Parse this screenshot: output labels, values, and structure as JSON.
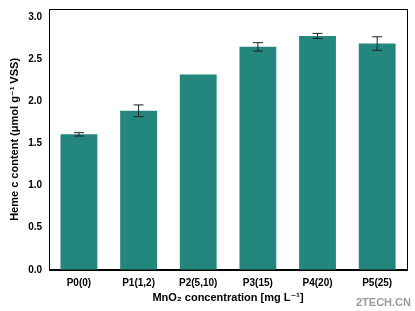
{
  "chart_data": {
    "type": "bar",
    "x_label": "MnO₂ concentration [mg L⁻¹]",
    "y_label": "Heme c content (μmol g⁻¹ VSS)",
    "categories": [
      "P0(0)",
      "P1(1,2)",
      "P2(5,10)",
      "P3(15)",
      "P4(20)",
      "P5(25)"
    ],
    "values": [
      1.61,
      1.89,
      2.32,
      2.65,
      2.78,
      2.69
    ],
    "errors": [
      0.02,
      0.07,
      0,
      0.05,
      0.03,
      0.08
    ],
    "color": "#24877e",
    "ylim": [
      0,
      3.1
    ],
    "yticks": [
      {
        "value": 0,
        "label": "0.0"
      },
      0.5,
      {
        "value": 1,
        "label": "1.0"
      },
      1.5,
      {
        "value": 2,
        "label": "2.0"
      },
      2.5,
      {
        "value": 3,
        "label": "3.0"
      }
    ],
    "grid": false,
    "annotations": [
      "2TECH.CN"
    ]
  }
}
